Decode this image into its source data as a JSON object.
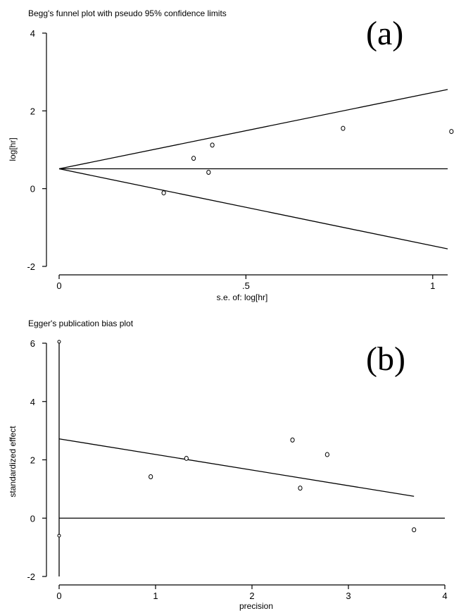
{
  "chart_data": [
    {
      "type": "scatter",
      "title": "Begg's funnel plot with pseudo 95% confidence limits",
      "panel_label": "(a)",
      "xlabel": "s.e. of: log[hr]",
      "ylabel": "log[hr]",
      "xlim": [
        0,
        1.04
      ],
      "ylim": [
        -2,
        4
      ],
      "xticks": [
        0,
        0.5,
        1
      ],
      "xtick_labels": [
        "0",
        ".5",
        "1"
      ],
      "yticks": [
        -2,
        0,
        2,
        4
      ],
      "ytick_labels": [
        "-2",
        "0",
        "2",
        "4"
      ],
      "points": [
        {
          "x": 0.28,
          "y": -0.11
        },
        {
          "x": 0.36,
          "y": 0.78
        },
        {
          "x": 0.4,
          "y": 0.42
        },
        {
          "x": 0.41,
          "y": 1.12
        },
        {
          "x": 0.76,
          "y": 1.55
        },
        {
          "x": 1.05,
          "y": 1.47
        }
      ],
      "pooled_estimate": 0.51,
      "funnel_upper": [
        [
          0,
          0.51
        ],
        [
          1.04,
          2.55
        ]
      ],
      "funnel_lower": [
        [
          0,
          0.51
        ],
        [
          1.04,
          -1.55
        ]
      ],
      "grid": false
    },
    {
      "type": "scatter",
      "title": "Egger's publication bias plot",
      "panel_label": "(b)",
      "xlabel": "precision",
      "ylabel": "standardized effect",
      "xlim": [
        0,
        4
      ],
      "ylim": [
        -2,
        6
      ],
      "xticks": [
        0,
        1,
        2,
        3,
        4
      ],
      "xtick_labels": [
        "0",
        "1",
        "2",
        "3",
        "4"
      ],
      "yticks": [
        -2,
        0,
        2,
        4,
        6
      ],
      "ytick_labels": [
        "-2",
        "0",
        "2",
        "4",
        "6"
      ],
      "points": [
        {
          "x": 0.95,
          "y": 1.42
        },
        {
          "x": 1.32,
          "y": 2.05
        },
        {
          "x": 2.42,
          "y": 2.68
        },
        {
          "x": 2.5,
          "y": 1.03
        },
        {
          "x": 2.78,
          "y": 2.18
        },
        {
          "x": 3.68,
          "y": -0.4
        }
      ],
      "intercept_points": [
        {
          "x": 0,
          "y": 6.05
        },
        {
          "x": 0,
          "y": -0.6
        }
      ],
      "intercept_ci": [
        -2.0,
        6.05
      ],
      "regression_line": [
        [
          0,
          2.72
        ],
        [
          3.68,
          0.75
        ]
      ],
      "grid": false
    }
  ]
}
